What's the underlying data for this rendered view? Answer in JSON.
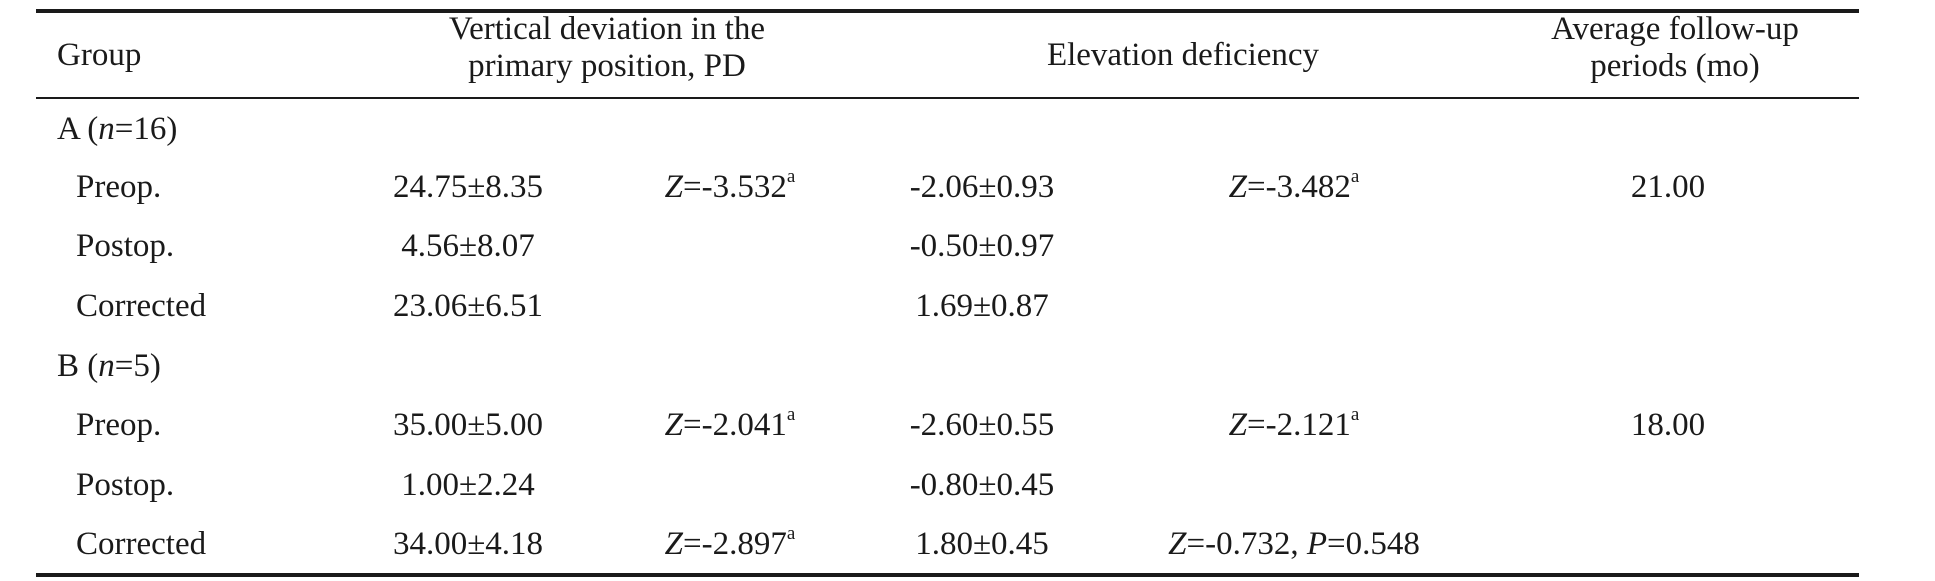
{
  "table": {
    "headers": {
      "group": "Group",
      "vertical_deviation_line1": "Vertical deviation in the",
      "vertical_deviation_line2": "primary position, PD",
      "elevation_deficiency": "Elevation deficiency",
      "follow_up_line1": "Average follow-up",
      "follow_up_line2": "periods (mo)"
    },
    "group_a": {
      "label_prefix": "A (",
      "label_var": "n",
      "label_suffix": "=16)",
      "rows": [
        {
          "label": "Preop.",
          "vd_value": "24.75±8.35",
          "vd_stat_var": "Z",
          "vd_stat_value": "=-3.532",
          "vd_stat_sup": "a",
          "ed_value": "-2.06±0.93",
          "ed_stat_var": "Z",
          "ed_stat_value": "=-3.482",
          "ed_stat_sup": "a",
          "follow_up": "21.00"
        },
        {
          "label": "Postop.",
          "vd_value": "4.56±8.07",
          "ed_value": "-0.50±0.97"
        },
        {
          "label": "Corrected",
          "vd_value": "23.06±6.51",
          "ed_value": "1.69±0.87"
        }
      ]
    },
    "group_b": {
      "label_prefix": "B (",
      "label_var": "n",
      "label_suffix": "=5)",
      "rows": [
        {
          "label": "Preop.",
          "vd_value": "35.00±5.00",
          "vd_stat_var": "Z",
          "vd_stat_value": "=-2.041",
          "vd_stat_sup": "a",
          "ed_value": "-2.60±0.55",
          "ed_stat_var": "Z",
          "ed_stat_value": "=-2.121",
          "ed_stat_sup": "a",
          "follow_up": "18.00"
        },
        {
          "label": "Postop.",
          "vd_value": "1.00±2.24",
          "ed_value": "-0.80±0.45"
        },
        {
          "label": "Corrected",
          "vd_value": "34.00±4.18",
          "vd_stat_var": "Z",
          "vd_stat_value": "=-2.897",
          "vd_stat_sup": "a",
          "ed_value": "1.80±0.45",
          "ed_stat_var": "Z",
          "ed_stat_value": "=-0.732, ",
          "ed_stat_var2": "P",
          "ed_stat_value2": "=0.548"
        }
      ]
    }
  }
}
